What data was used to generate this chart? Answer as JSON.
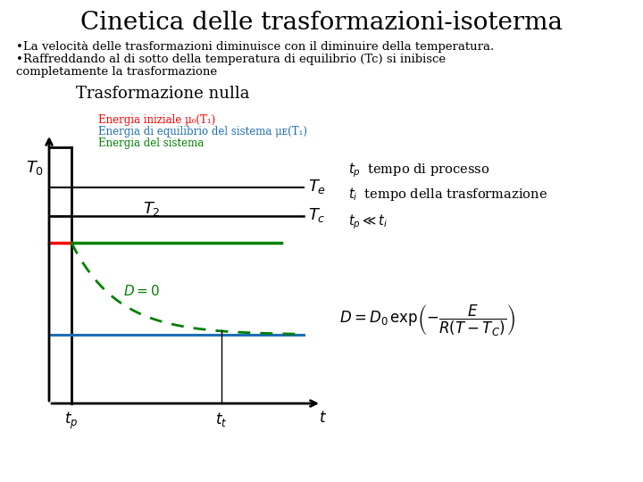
{
  "title": "Cinetica delle trasformazioni-isoterma",
  "bullet1": "•La velocità delle trasformazioni diminuisce con il diminuire della temperatura.",
  "bullet2a": "•Raffreddando al di sotto della temperatura di equilibrio (Tc) si inibisce",
  "bullet2b": "completamente la trasformazione",
  "subtitle": "Trasformazione nulla",
  "legend_red": "Energia iniziale μ₀(T₁)",
  "legend_blue": "Energia di equilibrio del sistema μᴇ(T₁)",
  "legend_green": "Energia del sistema",
  "bg_color": "#ffffff",
  "title_color": "#000000",
  "text_color": "#000000",
  "red_color": "#ff0000",
  "blue_color": "#1e6eb5",
  "green_color": "#008000",
  "black": "#000000"
}
